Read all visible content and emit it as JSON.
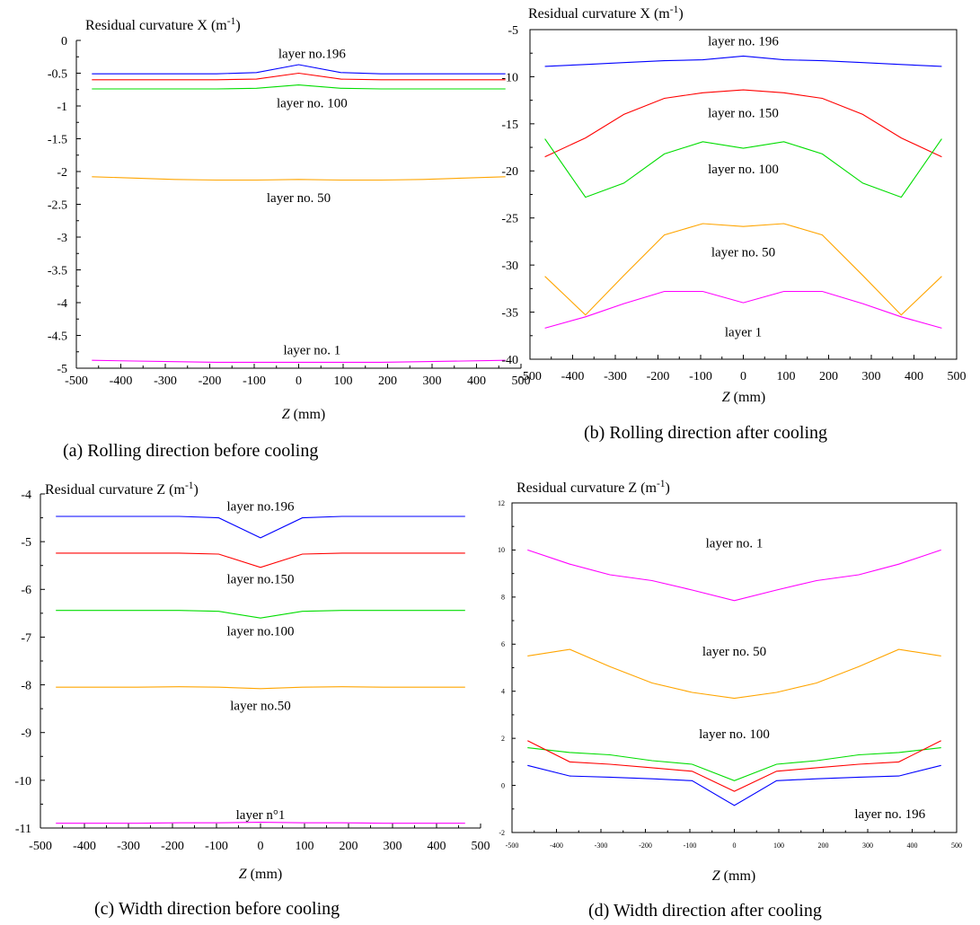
{
  "chart_data": [
    {
      "type": "line",
      "caption": "(a) Rolling direction before cooling",
      "ylabel_text": "Residual curvature X (m",
      "ylabel_sup": "-1",
      "ylabel_close": ")",
      "xlabel_italic": "Z",
      "xlabel_unit": " (mm)",
      "xlim": [
        -500,
        500
      ],
      "ylim": [
        -5,
        0
      ],
      "xticks": [
        -500,
        -400,
        -300,
        -200,
        -100,
        0,
        100,
        200,
        300,
        400,
        500
      ],
      "yticks": [
        0,
        -0.5,
        -1,
        -1.5,
        -2,
        -2.5,
        -3,
        -3.5,
        -4,
        -4.5,
        -5
      ],
      "xtick_labels": [
        "-500",
        "-400",
        "-300",
        "-200",
        "-100",
        "0",
        "100",
        "200",
        "300",
        "400",
        "500"
      ],
      "ytick_labels": [
        "0",
        "-0.5",
        "-1",
        "-1.5",
        "-2",
        "-2.5",
        "-3",
        "-3.5",
        "-4",
        "-4.5",
        "-5"
      ],
      "x": [
        -465,
        -370,
        -280,
        -185,
        -95,
        0,
        95,
        185,
        280,
        370,
        465
      ],
      "series": [
        {
          "color": "#0000ff",
          "values": [
            -0.51,
            -0.51,
            -0.51,
            -0.51,
            -0.49,
            -0.37,
            -0.49,
            -0.51,
            -0.51,
            -0.51,
            -0.51
          ]
        },
        {
          "color": "#ff0000",
          "values": [
            -0.6,
            -0.6,
            -0.6,
            -0.6,
            -0.59,
            -0.5,
            -0.59,
            -0.6,
            -0.6,
            -0.6,
            -0.6
          ]
        },
        {
          "color": "#00dd00",
          "values": [
            -0.74,
            -0.74,
            -0.74,
            -0.74,
            -0.73,
            -0.68,
            -0.73,
            -0.74,
            -0.74,
            -0.74,
            -0.74
          ]
        },
        {
          "color": "#ffa500",
          "values": [
            -2.08,
            -2.1,
            -2.12,
            -2.13,
            -2.13,
            -2.12,
            -2.13,
            -2.13,
            -2.12,
            -2.1,
            -2.08
          ]
        },
        {
          "color": "#ff00ff",
          "values": [
            -4.88,
            -4.89,
            -4.9,
            -4.91,
            -4.91,
            -4.91,
            -4.91,
            -4.91,
            -4.9,
            -4.89,
            -4.88
          ]
        }
      ],
      "annotations": [
        {
          "text": "layer no.196",
          "x": 30,
          "y": -0.2
        },
        {
          "text": "layer no. 100",
          "x": 30,
          "y": -0.95
        },
        {
          "text": "layer no. 50",
          "x": 0,
          "y": -2.4
        },
        {
          "text": "layer no. 1",
          "x": 30,
          "y": -4.72
        }
      ]
    },
    {
      "type": "line",
      "caption": "(b) Rolling direction after cooling",
      "ylabel_text": "Residual curvature X (m",
      "ylabel_sup": "-1",
      "ylabel_close": ")",
      "xlabel_italic": "Z",
      "xlabel_unit": " (mm)",
      "xlim": [
        -500,
        500
      ],
      "ylim": [
        -40,
        -5
      ],
      "xticks": [
        -500,
        -400,
        -300,
        -200,
        -100,
        0,
        100,
        200,
        300,
        400,
        500
      ],
      "yticks": [
        -5,
        -10,
        -15,
        -20,
        -25,
        -30,
        -35,
        -40
      ],
      "xtick_labels": [
        "-500",
        "-400",
        "-300",
        "-200",
        "-100",
        "0",
        "100",
        "200",
        "300",
        "400",
        "500"
      ],
      "ytick_labels": [
        "-5",
        "-10",
        "-15",
        "-20",
        "-25",
        "-30",
        "-35",
        "-40"
      ],
      "x": [
        -465,
        -370,
        -280,
        -185,
        -95,
        0,
        95,
        185,
        280,
        370,
        465
      ],
      "series": [
        {
          "color": "#0000ff",
          "values": [
            -8.9,
            -8.7,
            -8.5,
            -8.3,
            -8.2,
            -7.8,
            -8.2,
            -8.3,
            -8.5,
            -8.7,
            -8.9
          ]
        },
        {
          "color": "#ff0000",
          "values": [
            -18.5,
            -16.5,
            -14,
            -12.3,
            -11.7,
            -11.4,
            -11.7,
            -12.3,
            -14,
            -16.5,
            -18.5
          ]
        },
        {
          "color": "#00dd00",
          "values": [
            -16.6,
            -22.8,
            -21.3,
            -18.2,
            -16.9,
            -17.6,
            -16.9,
            -18.2,
            -21.3,
            -22.8,
            -16.6
          ]
        },
        {
          "color": "#ffa500",
          "values": [
            -31.2,
            -35.3,
            -31.1,
            -26.8,
            -25.6,
            -25.9,
            -25.6,
            -26.8,
            -31.1,
            -35.3,
            -31.2
          ]
        },
        {
          "color": "#ff00ff",
          "values": [
            -36.7,
            -35.5,
            -34.1,
            -32.8,
            -32.8,
            -34,
            -32.8,
            -32.8,
            -34.1,
            -35.5,
            -36.7
          ]
        }
      ],
      "annotations": [
        {
          "text": "layer no. 196",
          "x": 0,
          "y": -6.2
        },
        {
          "text": "layer no. 150",
          "x": 0,
          "y": -13.8
        },
        {
          "text": "layer no. 100",
          "x": 0,
          "y": -19.8
        },
        {
          "text": "layer no. 50",
          "x": 0,
          "y": -28.6
        },
        {
          "text": "layer      1",
          "x": 0,
          "y": -37.1
        }
      ]
    },
    {
      "type": "line",
      "caption": "(c) Width direction before cooling",
      "ylabel_text": "Residual curvature Z (m",
      "ylabel_sup": "-1",
      "ylabel_close": ")",
      "xlabel_italic": "Z",
      "xlabel_unit": " (mm)",
      "xlim": [
        -500,
        500
      ],
      "ylim": [
        -11,
        -4
      ],
      "xticks": [
        -500,
        -400,
        -300,
        -200,
        -100,
        0,
        100,
        200,
        300,
        400,
        500
      ],
      "yticks": [
        -4,
        -5,
        -6,
        -7,
        -8,
        -9,
        -10,
        -11
      ],
      "xtick_labels": [
        "-500",
        "-400",
        "-300",
        "-200",
        "-100",
        "0",
        "100",
        "200",
        "300",
        "400",
        "500"
      ],
      "ytick_labels": [
        "-4",
        "-5",
        "-6",
        "-7",
        "-8",
        "-9",
        "-10",
        "-11"
      ],
      "x": [
        -465,
        -370,
        -280,
        -185,
        -95,
        0,
        95,
        185,
        280,
        370,
        465
      ],
      "series": [
        {
          "color": "#0000ff",
          "values": [
            -4.47,
            -4.47,
            -4.47,
            -4.47,
            -4.5,
            -4.92,
            -4.5,
            -4.47,
            -4.47,
            -4.47,
            -4.47
          ]
        },
        {
          "color": "#ff0000",
          "values": [
            -5.24,
            -5.24,
            -5.24,
            -5.24,
            -5.26,
            -5.54,
            -5.26,
            -5.24,
            -5.24,
            -5.24,
            -5.24
          ]
        },
        {
          "color": "#00dd00",
          "values": [
            -6.44,
            -6.44,
            -6.44,
            -6.44,
            -6.46,
            -6.6,
            -6.46,
            -6.44,
            -6.44,
            -6.44,
            -6.44
          ]
        },
        {
          "color": "#ffa500",
          "values": [
            -8.05,
            -8.05,
            -8.05,
            -8.04,
            -8.05,
            -8.08,
            -8.05,
            -8.04,
            -8.05,
            -8.05,
            -8.05
          ]
        },
        {
          "color": "#ff00ff",
          "values": [
            -10.9,
            -10.9,
            -10.9,
            -10.89,
            -10.89,
            -10.88,
            -10.89,
            -10.89,
            -10.9,
            -10.9,
            -10.9
          ]
        }
      ],
      "annotations": [
        {
          "text": "layer no.196",
          "x": 0,
          "y": -4.25
        },
        {
          "text": "layer no.150",
          "x": 0,
          "y": -5.78
        },
        {
          "text": "layer no.100",
          "x": 0,
          "y": -6.87
        },
        {
          "text": "layer no.50",
          "x": 0,
          "y": -8.43
        },
        {
          "text": "layer n°1",
          "x": 0,
          "y": -10.72
        }
      ]
    },
    {
      "type": "line",
      "caption": "(d) Width direction after cooling",
      "ylabel_text": "Residual curvature Z (m",
      "ylabel_sup": "-1",
      "ylabel_close": ")",
      "xlabel_italic": "Z",
      "xlabel_unit": " (mm)",
      "xlim": [
        -500,
        500
      ],
      "ylim": [
        -2,
        12
      ],
      "xticks": [
        -500,
        -400,
        -300,
        -200,
        -100,
        0,
        100,
        200,
        300,
        400,
        500
      ],
      "yticks": [
        12,
        10,
        8,
        6,
        4,
        2,
        0,
        -2
      ],
      "xtick_labels": [
        "-500",
        "-400",
        "-300",
        "-200",
        "-100",
        "0",
        "100",
        "200",
        "300",
        "400",
        "500"
      ],
      "ytick_labels": [
        "12",
        "10",
        "8",
        "6",
        "4",
        "2",
        "0",
        "-2"
      ],
      "x": [
        -465,
        -370,
        -280,
        -185,
        -95,
        0,
        95,
        185,
        280,
        370,
        465
      ],
      "series": [
        {
          "color": "#ff00ff",
          "values": [
            10,
            9.4,
            8.95,
            8.7,
            8.3,
            7.85,
            8.3,
            8.7,
            8.95,
            9.4,
            10
          ]
        },
        {
          "color": "#ffa500",
          "values": [
            5.5,
            5.78,
            5.05,
            4.35,
            3.95,
            3.7,
            3.95,
            4.35,
            5.05,
            5.78,
            5.5
          ]
        },
        {
          "color": "#00dd00",
          "values": [
            1.6,
            1.4,
            1.3,
            1.05,
            0.9,
            0.2,
            0.9,
            1.05,
            1.3,
            1.4,
            1.6
          ]
        },
        {
          "color": "#ff0000",
          "values": [
            1.9,
            1.0,
            0.9,
            0.75,
            0.6,
            -0.25,
            0.6,
            0.75,
            0.9,
            1.0,
            1.9
          ]
        },
        {
          "color": "#0000ff",
          "values": [
            0.85,
            0.4,
            0.35,
            0.28,
            0.2,
            -0.85,
            0.2,
            0.28,
            0.35,
            0.4,
            0.85
          ]
        }
      ],
      "annotations": [
        {
          "text": "layer no. 1",
          "x": 0,
          "y": 10.3
        },
        {
          "text": "layer no. 50",
          "x": 0,
          "y": 5.7
        },
        {
          "text": "layer no. 100",
          "x": 0,
          "y": 2.2
        },
        {
          "text": "layer no. 196",
          "x": 350,
          "y": -1.2
        }
      ]
    }
  ]
}
